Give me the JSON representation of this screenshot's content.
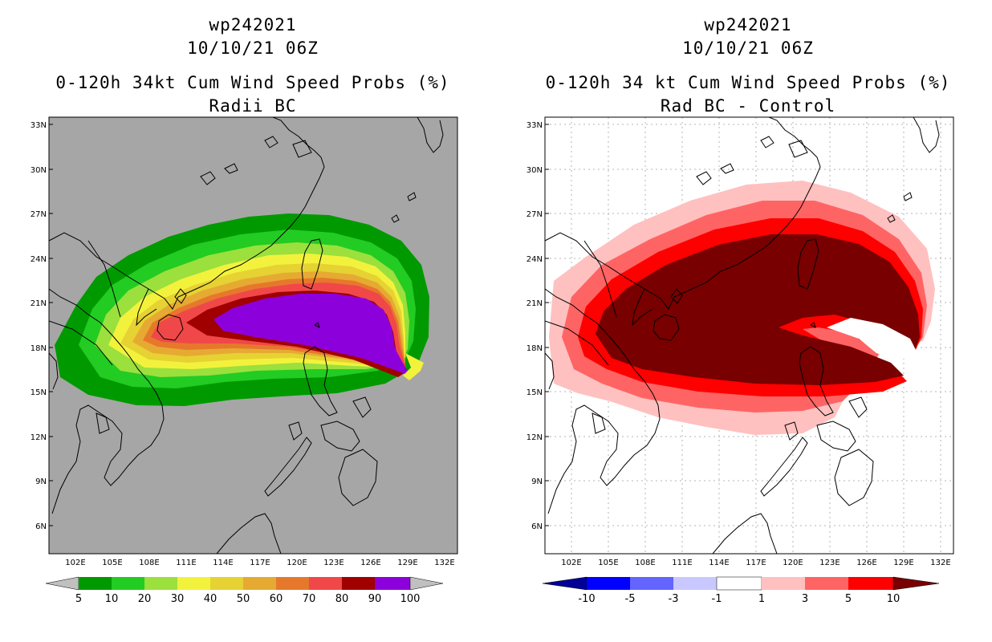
{
  "panels": [
    {
      "title_line1": "wp242021",
      "title_line2": "10/10/21 06Z",
      "title_line3": "0-120h 34kt Cum Wind Speed Probs (%)",
      "title_line4": "Radii BC",
      "background": "#a6a6a6",
      "lat_labels": [
        "33N",
        "30N",
        "27N",
        "24N",
        "21N",
        "18N",
        "15N",
        "12N",
        "9N",
        "6N"
      ],
      "lon_labels": [
        "102E",
        "105E",
        "108E",
        "111E",
        "114E",
        "117E",
        "120E",
        "123E",
        "126E",
        "129E",
        "132E"
      ],
      "colorbar": {
        "colors": [
          "#009a00",
          "#22cc22",
          "#9be03c",
          "#f2f23c",
          "#e6d232",
          "#e6aa32",
          "#e6782c",
          "#f04848",
          "#a00000",
          "#8c00dc"
        ],
        "end_low": "#c0c0c0",
        "end_high": "#c0c0c0",
        "labels": [
          "5",
          "10",
          "20",
          "30",
          "40",
          "50",
          "60",
          "70",
          "80",
          "90",
          "100"
        ]
      }
    },
    {
      "title_line1": "wp242021",
      "title_line2": "10/10/21 06Z",
      "title_line3": "0-120h 34 kt Cum Wind Speed Probs (%)",
      "title_line4": "Rad BC - Control",
      "background": "#ffffff",
      "lat_labels": [
        "33N",
        "30N",
        "27N",
        "24N",
        "21N",
        "18N",
        "15N",
        "12N",
        "9N",
        "6N"
      ],
      "lon_labels": [
        "102E",
        "105E",
        "108E",
        "111E",
        "114E",
        "117E",
        "120E",
        "123E",
        "126E",
        "129E",
        "132E"
      ],
      "colorbar": {
        "colors": [
          "#0000ff",
          "#6464ff",
          "#c8c8ff",
          "#ffffff",
          "#ffc0c0",
          "#ff6464",
          "#ff0000"
        ],
        "end_low": "#000096",
        "end_high": "#780000",
        "labels": [
          "-10",
          "-5",
          "-3",
          "-1",
          "1",
          "3",
          "5",
          "10"
        ]
      }
    }
  ]
}
